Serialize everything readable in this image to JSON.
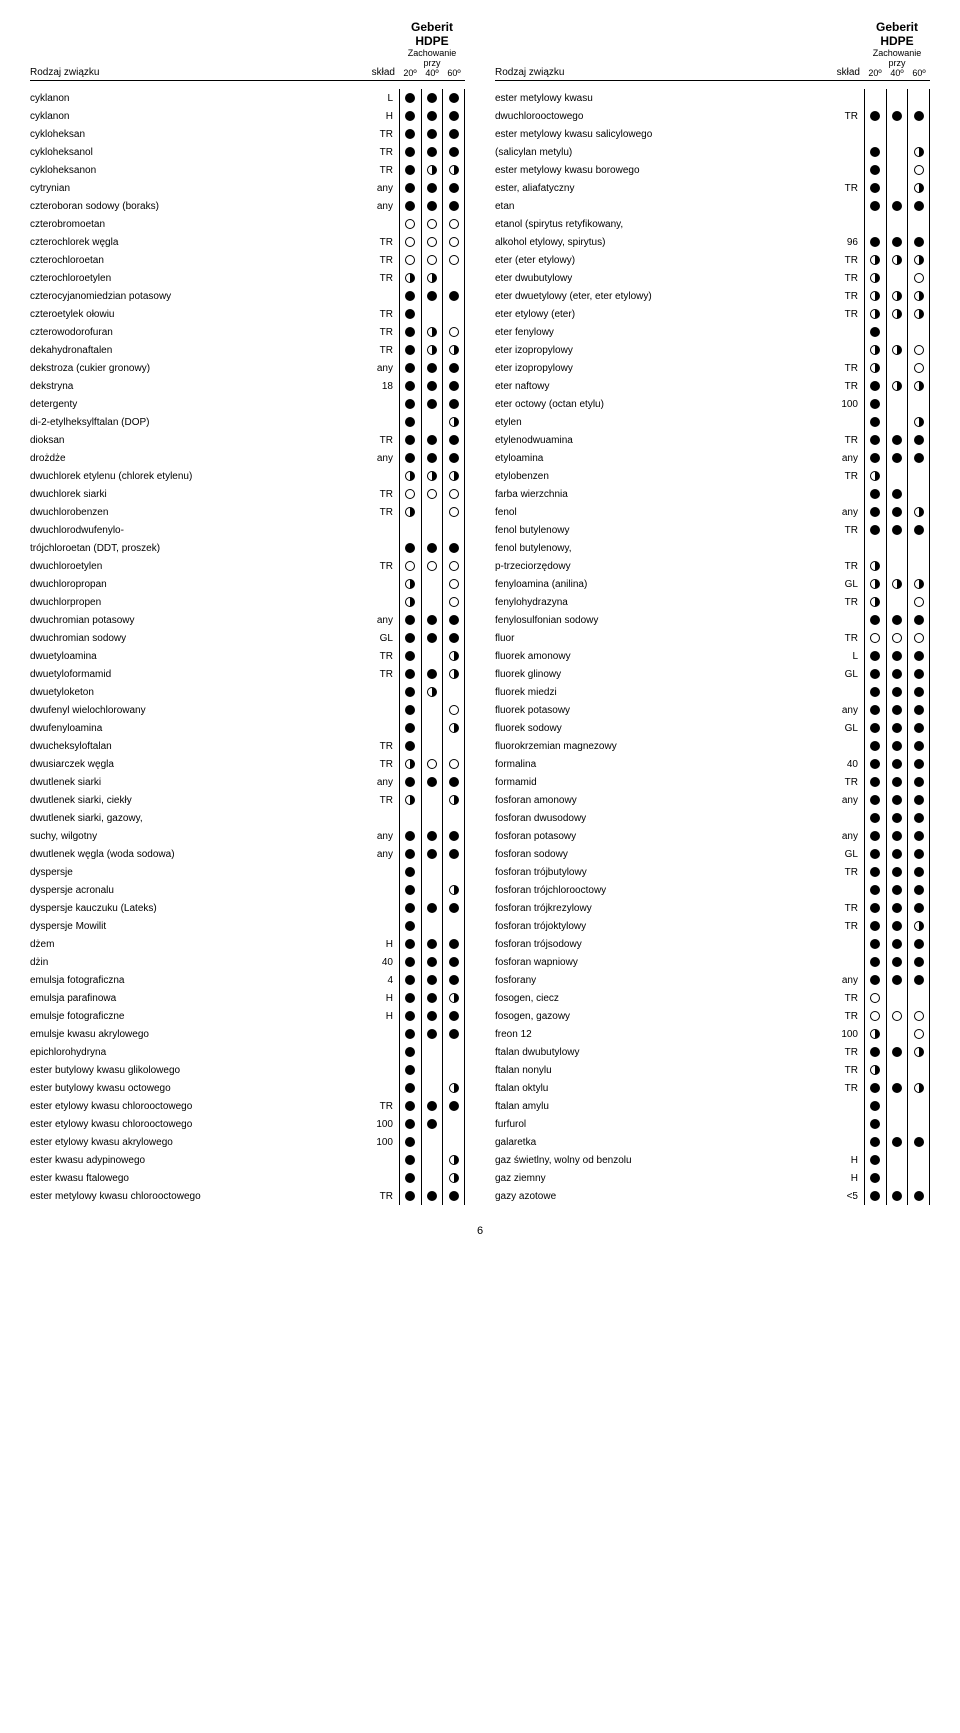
{
  "brand": "Geberit HDPE",
  "subheader": "Zachowanie przy",
  "temps": [
    "20º",
    "40º",
    "60º"
  ],
  "col_name": "Rodzaj związku",
  "col_sklad": "skład",
  "page_number": "6",
  "left": [
    {
      "n": "cyklanon",
      "s": "L",
      "v": [
        "f",
        "f",
        "f"
      ]
    },
    {
      "n": "cyklanon",
      "s": "H",
      "v": [
        "f",
        "f",
        "f"
      ]
    },
    {
      "n": "cykloheksan",
      "s": "TR",
      "v": [
        "f",
        "f",
        "f"
      ]
    },
    {
      "n": "cykloheksanol",
      "s": "TR",
      "v": [
        "f",
        "f",
        "f"
      ]
    },
    {
      "n": "cykloheksanon",
      "s": "TR",
      "v": [
        "f",
        "h",
        "h"
      ]
    },
    {
      "n": "cytrynian",
      "s": "any",
      "v": [
        "f",
        "f",
        "f"
      ]
    },
    {
      "n": "czteroboran sodowy (boraks)",
      "s": "any",
      "v": [
        "f",
        "f",
        "f"
      ]
    },
    {
      "n": "czterobromoetan",
      "s": "",
      "v": [
        "e",
        "e",
        "e"
      ]
    },
    {
      "n": "czterochlorek węgla",
      "s": "TR",
      "v": [
        "e",
        "e",
        "e"
      ]
    },
    {
      "n": "czterochloroetan",
      "s": "TR",
      "v": [
        "e",
        "e",
        "e"
      ]
    },
    {
      "n": "czterochloroetylen",
      "s": "TR",
      "v": [
        "h",
        "h",
        ""
      ]
    },
    {
      "n": "czterocyjanomiedzian potasowy",
      "s": "",
      "v": [
        "f",
        "f",
        "f"
      ]
    },
    {
      "n": "czteroetylek ołowiu",
      "s": "TR",
      "v": [
        "f",
        "",
        ""
      ]
    },
    {
      "n": "czterowodorofuran",
      "s": "TR",
      "v": [
        "f",
        "h",
        "e"
      ]
    },
    {
      "n": "dekahydronaftalen",
      "s": "TR",
      "v": [
        "f",
        "h",
        "h"
      ]
    },
    {
      "n": "dekstroza (cukier gronowy)",
      "s": "any",
      "v": [
        "f",
        "f",
        "f"
      ]
    },
    {
      "n": "dekstryna",
      "s": "18",
      "v": [
        "f",
        "f",
        "f"
      ]
    },
    {
      "n": "detergenty",
      "s": "",
      "v": [
        "f",
        "f",
        "f"
      ]
    },
    {
      "n": "di-2-etylheksylftalan (DOP)",
      "s": "",
      "v": [
        "f",
        "",
        "h"
      ]
    },
    {
      "n": "dioksan",
      "s": "TR",
      "v": [
        "f",
        "f",
        "f"
      ]
    },
    {
      "n": "drożdże",
      "s": "any",
      "v": [
        "f",
        "f",
        "f"
      ]
    },
    {
      "n": "dwuchlorek etylenu (chlorek etylenu)",
      "s": "",
      "v": [
        "h",
        "h",
        "h"
      ]
    },
    {
      "n": "dwuchlorek siarki",
      "s": "TR",
      "v": [
        "e",
        "e",
        "e"
      ]
    },
    {
      "n": "dwuchlorobenzen",
      "s": "TR",
      "v": [
        "h",
        "",
        "e"
      ]
    },
    {
      "n": "dwuchlorodwufenylo-",
      "s": "",
      "v": [
        "",
        "",
        ""
      ]
    },
    {
      "n": "trójchloroetan (DDT, proszek)",
      "s": "",
      "v": [
        "f",
        "f",
        "f"
      ]
    },
    {
      "n": "dwuchloroetylen",
      "s": "TR",
      "v": [
        "e",
        "e",
        "e"
      ]
    },
    {
      "n": "dwuchloropropan",
      "s": "",
      "v": [
        "h",
        "",
        "e"
      ]
    },
    {
      "n": "dwuchlorpropen",
      "s": "",
      "v": [
        "h",
        "",
        "e"
      ]
    },
    {
      "n": "dwuchromian potasowy",
      "s": "any",
      "v": [
        "f",
        "f",
        "f"
      ]
    },
    {
      "n": "dwuchromian sodowy",
      "s": "GL",
      "v": [
        "f",
        "f",
        "f"
      ]
    },
    {
      "n": "dwuetyloamina",
      "s": "TR",
      "v": [
        "f",
        "",
        "h"
      ]
    },
    {
      "n": "dwuetyloformamid",
      "s": "TR",
      "v": [
        "f",
        "f",
        "h"
      ]
    },
    {
      "n": "dwuetyloketon",
      "s": "",
      "v": [
        "f",
        "h",
        ""
      ]
    },
    {
      "n": "dwufenyl wielochlorowany",
      "s": "",
      "v": [
        "f",
        "",
        "e"
      ]
    },
    {
      "n": "dwufenyloamina",
      "s": "",
      "v": [
        "f",
        "",
        "h"
      ]
    },
    {
      "n": "dwucheksyloftalan",
      "s": "TR",
      "v": [
        "f",
        "",
        ""
      ]
    },
    {
      "n": "dwusiarczek węgla",
      "s": "TR",
      "v": [
        "h",
        "e",
        "e"
      ]
    },
    {
      "n": "dwutlenek siarki",
      "s": "any",
      "v": [
        "f",
        "f",
        "f"
      ]
    },
    {
      "n": "dwutlenek siarki, ciekły",
      "s": "TR",
      "v": [
        "h",
        "",
        "h"
      ]
    },
    {
      "n": "dwutlenek siarki, gazowy,",
      "s": "",
      "v": [
        "",
        "",
        ""
      ]
    },
    {
      "n": "suchy, wilgotny",
      "s": "any",
      "v": [
        "f",
        "f",
        "f"
      ]
    },
    {
      "n": "dwutlenek węgla (woda sodowa)",
      "s": "any",
      "v": [
        "f",
        "f",
        "f"
      ]
    },
    {
      "n": "dyspersje",
      "s": "",
      "v": [
        "f",
        "",
        ""
      ]
    },
    {
      "n": "dyspersje acronalu",
      "s": "",
      "v": [
        "f",
        "",
        "h"
      ]
    },
    {
      "n": "dyspersje kauczuku (Lateks)",
      "s": "",
      "v": [
        "f",
        "f",
        "f"
      ]
    },
    {
      "n": "dyspersje Mowilit",
      "s": "",
      "v": [
        "f",
        "",
        ""
      ]
    },
    {
      "n": "dżem",
      "s": "H",
      "v": [
        "f",
        "f",
        "f"
      ]
    },
    {
      "n": "dżin",
      "s": "40",
      "v": [
        "f",
        "f",
        "f"
      ]
    },
    {
      "n": "emulsja fotograficzna",
      "s": "4",
      "v": [
        "f",
        "f",
        "f"
      ]
    },
    {
      "n": "emulsja parafinowa",
      "s": "H",
      "v": [
        "f",
        "f",
        "h"
      ]
    },
    {
      "n": "emulsje fotograficzne",
      "s": "H",
      "v": [
        "f",
        "f",
        "f"
      ]
    },
    {
      "n": "emulsje kwasu akrylowego",
      "s": "",
      "v": [
        "f",
        "f",
        "f"
      ]
    },
    {
      "n": "epichlorohydryna",
      "s": "",
      "v": [
        "f",
        "",
        ""
      ]
    },
    {
      "n": "ester butylowy kwasu glikolowego",
      "s": "",
      "v": [
        "f",
        "",
        ""
      ]
    },
    {
      "n": "ester butylowy kwasu octowego",
      "s": "",
      "v": [
        "f",
        "",
        "h"
      ]
    },
    {
      "n": "ester etylowy kwasu chlorooctowego",
      "s": "TR",
      "v": [
        "f",
        "f",
        "f"
      ]
    },
    {
      "n": "ester etylowy kwasu chlorooctowego",
      "s": "100",
      "v": [
        "f",
        "f",
        ""
      ]
    },
    {
      "n": "ester etylowy kwasu akrylowego",
      "s": "100",
      "v": [
        "f",
        "",
        ""
      ]
    },
    {
      "n": "ester kwasu adypinowego",
      "s": "",
      "v": [
        "f",
        "",
        "h"
      ]
    },
    {
      "n": "ester kwasu ftalowego",
      "s": "",
      "v": [
        "f",
        "",
        "h"
      ]
    },
    {
      "n": "ester metylowy kwasu chlorooctowego",
      "s": "TR",
      "v": [
        "f",
        "f",
        "f"
      ]
    }
  ],
  "right": [
    {
      "n": "ester metylowy kwasu",
      "s": "",
      "v": [
        "",
        "",
        ""
      ]
    },
    {
      "n": "dwuchlorooctowego",
      "s": "TR",
      "v": [
        "f",
        "f",
        "f"
      ]
    },
    {
      "n": "ester metylowy kwasu salicylowego",
      "s": "",
      "v": [
        "",
        "",
        ""
      ]
    },
    {
      "n": "(salicylan metylu)",
      "s": "",
      "v": [
        "f",
        "",
        "h"
      ]
    },
    {
      "n": "ester metylowy kwasu borowego",
      "s": "",
      "v": [
        "f",
        "",
        "e"
      ]
    },
    {
      "n": "ester, aliafatyczny",
      "s": "TR",
      "v": [
        "f",
        "",
        "h"
      ]
    },
    {
      "n": "etan",
      "s": "",
      "v": [
        "f",
        "f",
        "f"
      ]
    },
    {
      "n": "etanol (spirytus retyfikowany,",
      "s": "",
      "v": [
        "",
        "",
        ""
      ]
    },
    {
      "n": "alkohol etylowy, spirytus)",
      "s": "96",
      "v": [
        "f",
        "f",
        "f"
      ]
    },
    {
      "n": "eter (eter etylowy)",
      "s": "TR",
      "v": [
        "h",
        "h",
        "h"
      ]
    },
    {
      "n": "eter dwubutylowy",
      "s": "TR",
      "v": [
        "h",
        "",
        "e"
      ]
    },
    {
      "n": "eter dwuetylowy (eter, eter etylowy)",
      "s": "TR",
      "v": [
        "h",
        "h",
        "h"
      ]
    },
    {
      "n": "eter etylowy (eter)",
      "s": "TR",
      "v": [
        "h",
        "h",
        "h"
      ]
    },
    {
      "n": "eter fenylowy",
      "s": "",
      "v": [
        "f",
        "",
        ""
      ]
    },
    {
      "n": "eter izopropylowy",
      "s": "",
      "v": [
        "h",
        "h",
        "e"
      ]
    },
    {
      "n": "eter izopropylowy",
      "s": "TR",
      "v": [
        "h",
        "",
        "e"
      ]
    },
    {
      "n": "eter naftowy",
      "s": "TR",
      "v": [
        "f",
        "h",
        "h"
      ]
    },
    {
      "n": "eter octowy (octan etylu)",
      "s": "100",
      "v": [
        "f",
        "",
        ""
      ]
    },
    {
      "n": "etylen",
      "s": "",
      "v": [
        "f",
        "",
        "h"
      ]
    },
    {
      "n": "etylenodwuamina",
      "s": "TR",
      "v": [
        "f",
        "f",
        "f"
      ]
    },
    {
      "n": "etyloamina",
      "s": "any",
      "v": [
        "f",
        "f",
        "f"
      ]
    },
    {
      "n": "etylobenzen",
      "s": "TR",
      "v": [
        "h",
        "",
        ""
      ]
    },
    {
      "n": "farba wierzchnia",
      "s": "",
      "v": [
        "f",
        "f",
        ""
      ]
    },
    {
      "n": "fenol",
      "s": "any",
      "v": [
        "f",
        "f",
        "h"
      ]
    },
    {
      "n": "fenol butylenowy",
      "s": "TR",
      "v": [
        "f",
        "f",
        "f"
      ]
    },
    {
      "n": "fenol butylenowy,",
      "s": "",
      "v": [
        "",
        "",
        ""
      ]
    },
    {
      "n": "p-trzeciorzędowy",
      "s": "TR",
      "v": [
        "h",
        "",
        ""
      ]
    },
    {
      "n": "fenyloamina (anilina)",
      "s": "GL",
      "v": [
        "h",
        "h",
        "h"
      ]
    },
    {
      "n": "fenylohydrazyna",
      "s": "TR",
      "v": [
        "h",
        "",
        "e"
      ]
    },
    {
      "n": "fenylosulfonian sodowy",
      "s": "",
      "v": [
        "f",
        "f",
        "f"
      ]
    },
    {
      "n": "fluor",
      "s": "TR",
      "v": [
        "e",
        "e",
        "e"
      ]
    },
    {
      "n": "fluorek amonowy",
      "s": "L",
      "v": [
        "f",
        "f",
        "f"
      ]
    },
    {
      "n": "fluorek glinowy",
      "s": "GL",
      "v": [
        "f",
        "f",
        "f"
      ]
    },
    {
      "n": "fluorek miedzi",
      "s": "",
      "v": [
        "f",
        "f",
        "f"
      ]
    },
    {
      "n": "fluorek potasowy",
      "s": "any",
      "v": [
        "f",
        "f",
        "f"
      ]
    },
    {
      "n": "fluorek sodowy",
      "s": "GL",
      "v": [
        "f",
        "f",
        "f"
      ]
    },
    {
      "n": "fluorokrzemian magnezowy",
      "s": "",
      "v": [
        "f",
        "f",
        "f"
      ]
    },
    {
      "n": "formalina",
      "s": "40",
      "v": [
        "f",
        "f",
        "f"
      ]
    },
    {
      "n": "formamid",
      "s": "TR",
      "v": [
        "f",
        "f",
        "f"
      ]
    },
    {
      "n": "fosforan amonowy",
      "s": "any",
      "v": [
        "f",
        "f",
        "f"
      ]
    },
    {
      "n": "fosforan dwusodowy",
      "s": "",
      "v": [
        "f",
        "f",
        "f"
      ]
    },
    {
      "n": "fosforan potasowy",
      "s": "any",
      "v": [
        "f",
        "f",
        "f"
      ]
    },
    {
      "n": "fosforan sodowy",
      "s": "GL",
      "v": [
        "f",
        "f",
        "f"
      ]
    },
    {
      "n": "fosforan trójbutylowy",
      "s": "TR",
      "v": [
        "f",
        "f",
        "f"
      ]
    },
    {
      "n": "fosforan trójchlorooctowy",
      "s": "",
      "v": [
        "f",
        "f",
        "f"
      ]
    },
    {
      "n": "fosforan trójkrezylowy",
      "s": "TR",
      "v": [
        "f",
        "f",
        "f"
      ]
    },
    {
      "n": "fosforan trójoktylowy",
      "s": "TR",
      "v": [
        "f",
        "f",
        "h"
      ]
    },
    {
      "n": "fosforan trójsodowy",
      "s": "",
      "v": [
        "f",
        "f",
        "f"
      ]
    },
    {
      "n": "fosforan wapniowy",
      "s": "",
      "v": [
        "f",
        "f",
        "f"
      ]
    },
    {
      "n": "fosforany",
      "s": "any",
      "v": [
        "f",
        "f",
        "f"
      ]
    },
    {
      "n": "fosogen, ciecz",
      "s": "TR",
      "v": [
        "e",
        "",
        ""
      ]
    },
    {
      "n": "fosogen, gazowy",
      "s": "TR",
      "v": [
        "e",
        "e",
        "e"
      ]
    },
    {
      "n": "freon 12",
      "s": "100",
      "v": [
        "h",
        "",
        "e"
      ]
    },
    {
      "n": "ftalan dwubutylowy",
      "s": "TR",
      "v": [
        "f",
        "f",
        "h"
      ]
    },
    {
      "n": "ftalan nonylu",
      "s": "TR",
      "v": [
        "h",
        "",
        ""
      ]
    },
    {
      "n": "ftalan oktylu",
      "s": "TR",
      "v": [
        "f",
        "f",
        "h"
      ]
    },
    {
      "n": "ftalan amylu",
      "s": "",
      "v": [
        "f",
        "",
        ""
      ]
    },
    {
      "n": "furfurol",
      "s": "",
      "v": [
        "f",
        "",
        ""
      ]
    },
    {
      "n": "galaretka",
      "s": "",
      "v": [
        "f",
        "f",
        "f"
      ]
    },
    {
      "n": "gaz świetlny, wolny od benzolu",
      "s": "H",
      "v": [
        "f",
        "",
        ""
      ]
    },
    {
      "n": "gaz ziemny",
      "s": "H",
      "v": [
        "f",
        "",
        ""
      ]
    },
    {
      "n": "gazy azotowe",
      "s": "<5",
      "v": [
        "f",
        "f",
        "f"
      ]
    }
  ]
}
